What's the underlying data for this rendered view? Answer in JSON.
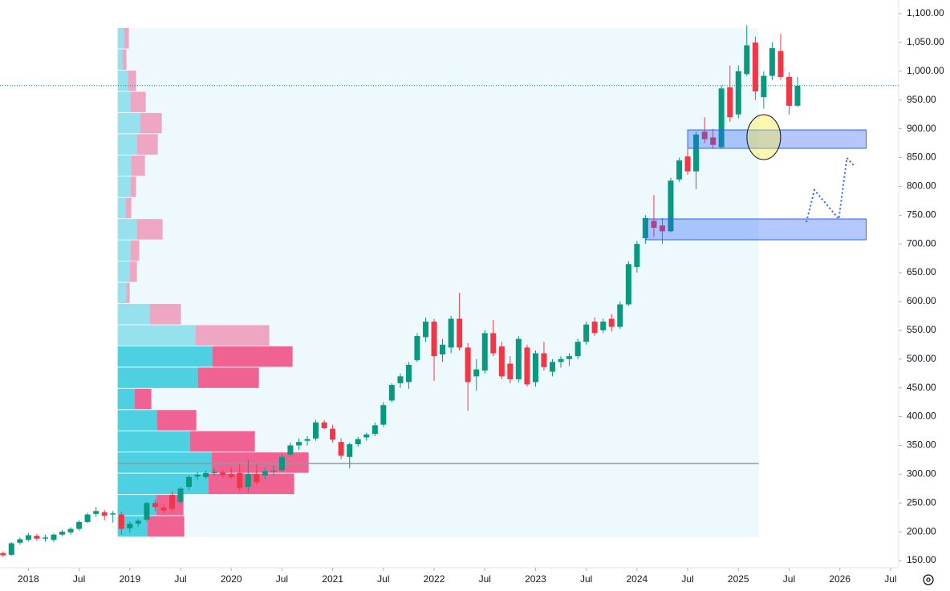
{
  "chart_data": {
    "type": "candlestick",
    "x": [
      2017.75,
      2017.833,
      2017.917,
      2018,
      2018.083,
      2018.167,
      2018.25,
      2018.333,
      2018.417,
      2018.5,
      2018.583,
      2018.667,
      2018.75,
      2018.833,
      2018.917,
      2019,
      2019.083,
      2019.167,
      2019.25,
      2019.333,
      2019.417,
      2019.5,
      2019.583,
      2019.667,
      2019.75,
      2019.833,
      2019.917,
      2020,
      2020.083,
      2020.167,
      2020.25,
      2020.333,
      2020.417,
      2020.5,
      2020.583,
      2020.667,
      2020.75,
      2020.833,
      2020.917,
      2021,
      2021.083,
      2021.167,
      2021.25,
      2021.333,
      2021.417,
      2021.5,
      2021.583,
      2021.667,
      2021.75,
      2021.833,
      2021.917,
      2022,
      2022.083,
      2022.167,
      2022.25,
      2022.333,
      2022.417,
      2022.5,
      2022.583,
      2022.667,
      2022.75,
      2022.833,
      2022.917,
      2023,
      2023.083,
      2023.167,
      2023.25,
      2023.333,
      2023.417,
      2023.5,
      2023.583,
      2023.667,
      2023.75,
      2023.833,
      2023.917,
      2024,
      2024.083,
      2024.167,
      2024.25,
      2024.333,
      2024.417,
      2024.5,
      2024.583,
      2024.667,
      2024.75,
      2024.833,
      2024.917,
      2025,
      2025.083,
      2025.167,
      2025.25,
      2025.333,
      2025.417,
      2025.5,
      2025.583
    ],
    "open": [
      163,
      160,
      181,
      186,
      193,
      188,
      186,
      195,
      199,
      205,
      217,
      231,
      234,
      230,
      230,
      206,
      214,
      221,
      250,
      242,
      264,
      252,
      278,
      296,
      295,
      302,
      303,
      300,
      302,
      278,
      300,
      298,
      305,
      307,
      334,
      350,
      358,
      362,
      390,
      379,
      356,
      330,
      352,
      364,
      370,
      386,
      428,
      458,
      460,
      498,
      538,
      565,
      508,
      520,
      570,
      520,
      470,
      480,
      545,
      522,
      492,
      465,
      520,
      460,
      510,
      478,
      495,
      500,
      505,
      530,
      565,
      550,
      570,
      556,
      595,
      660,
      710,
      740,
      732,
      722,
      812,
      852,
      826,
      895,
      885,
      868,
      972,
      925,
      995,
      1050,
      955,
      992,
      1035,
      990,
      940
    ],
    "high": [
      166,
      182,
      190,
      198,
      196,
      195,
      197,
      203,
      208,
      220,
      233,
      243,
      238,
      236,
      235,
      218,
      222,
      252,
      256,
      248,
      270,
      278,
      298,
      304,
      306,
      310,
      308,
      312,
      318,
      325,
      318,
      312,
      315,
      335,
      355,
      362,
      366,
      394,
      394,
      386,
      362,
      355,
      365,
      372,
      390,
      425,
      458,
      475,
      495,
      545,
      572,
      570,
      535,
      575,
      615,
      528,
      500,
      550,
      568,
      530,
      505,
      540,
      525,
      515,
      530,
      500,
      505,
      510,
      535,
      565,
      572,
      570,
      578,
      600,
      670,
      705,
      750,
      785,
      745,
      815,
      850,
      865,
      895,
      920,
      900,
      975,
      1010,
      1010,
      1080,
      1060,
      1000,
      1050,
      1065,
      998,
      990
    ],
    "low": [
      156,
      158,
      178,
      183,
      184,
      183,
      182,
      192,
      195,
      202,
      215,
      226,
      220,
      216,
      195,
      198,
      209,
      218,
      236,
      232,
      236,
      248,
      272,
      290,
      292,
      298,
      294,
      292,
      272,
      268,
      282,
      292,
      298,
      303,
      330,
      342,
      350,
      358,
      378,
      355,
      326,
      310,
      348,
      358,
      366,
      382,
      425,
      450,
      448,
      495,
      530,
      462,
      495,
      510,
      515,
      410,
      445,
      475,
      505,
      465,
      458,
      460,
      452,
      452,
      480,
      470,
      485,
      488,
      500,
      525,
      540,
      545,
      548,
      552,
      592,
      650,
      700,
      712,
      700,
      720,
      808,
      820,
      795,
      875,
      865,
      865,
      912,
      918,
      992,
      950,
      935,
      985,
      985,
      925,
      938
    ],
    "close": [
      159,
      180,
      187,
      194,
      188,
      190,
      195,
      200,
      205,
      217,
      230,
      236,
      228,
      232,
      205,
      214,
      219,
      250,
      243,
      237,
      240,
      275,
      295,
      299,
      302,
      304,
      298,
      295,
      276,
      300,
      286,
      305,
      306,
      330,
      350,
      356,
      361,
      390,
      380,
      360,
      332,
      352,
      361,
      369,
      385,
      420,
      455,
      470,
      490,
      540,
      565,
      505,
      525,
      570,
      520,
      460,
      482,
      545,
      510,
      470,
      465,
      535,
      456,
      510,
      486,
      495,
      500,
      505,
      530,
      560,
      545,
      565,
      556,
      595,
      665,
      700,
      745,
      728,
      722,
      810,
      845,
      826,
      890,
      882,
      872,
      970,
      920,
      1000,
      1045,
      965,
      992,
      1040,
      990,
      940,
      975
    ],
    "up_color": "#089981",
    "down_color": "#f23645",
    "xlim": [
      2017.72,
      2026.58
    ],
    "ylim": [
      137.5,
      1123.7
    ],
    "xticks": [
      2018,
      {
        "value": 2018.5,
        "label": "Jul"
      },
      2019,
      {
        "value": 2019.5,
        "label": "Jul"
      },
      2020,
      {
        "value": 2020.5,
        "label": "Jul"
      },
      2021,
      {
        "value": 2021.5,
        "label": "Jul"
      },
      2022,
      {
        "value": 2022.5,
        "label": "Jul"
      },
      2023,
      {
        "value": 2023.5,
        "label": "Jul"
      },
      2024,
      {
        "value": 2024.5,
        "label": "Jul"
      },
      2025,
      {
        "value": 2025.5,
        "label": "Jul"
      },
      2026,
      {
        "value": 2026.5,
        "label": "Jul"
      }
    ],
    "yticks": [
      {
        "value": 150,
        "label": "150.00"
      },
      {
        "value": 200,
        "label": "200.00"
      },
      {
        "value": 250,
        "label": "250.00"
      },
      {
        "value": 300,
        "label": "300.00"
      },
      {
        "value": 350,
        "label": "350.00"
      },
      {
        "value": 400,
        "label": "400.00"
      },
      {
        "value": 450,
        "label": "450.00"
      },
      {
        "value": 500,
        "label": "500.00"
      },
      {
        "value": 550,
        "label": "550.00"
      },
      {
        "value": 600,
        "label": "600.00"
      },
      {
        "value": 650,
        "label": "650.00"
      },
      {
        "value": 700,
        "label": "700.00"
      },
      {
        "value": 750,
        "label": "750.00"
      },
      {
        "value": 800,
        "label": "800.00"
      },
      {
        "value": 850,
        "label": "850.00"
      },
      {
        "value": 900,
        "label": "900.00"
      },
      {
        "value": 950,
        "label": "950.00"
      },
      {
        "value": 1000,
        "label": "1,000.00"
      },
      {
        "value": 1050,
        "label": "1,050.00"
      },
      {
        "value": 1100,
        "label": "1,100.00"
      }
    ],
    "volume_profile": {
      "start": 2018.88,
      "end": 2025.2,
      "bins": [
        190.4,
        227.3,
        264.1,
        301.0,
        337.8,
        374.7,
        411.5,
        448.4,
        485.2,
        522.1,
        558.9,
        595.8,
        632.6,
        669.5,
        706.3,
        743.2,
        780.0,
        816.9,
        853.7,
        890.6,
        927.4,
        964.3,
        1001.1,
        1038.0,
        1074.9
      ],
      "up": [
        37,
        48,
        113,
        117,
        90,
        49,
        21,
        100,
        118,
        97,
        40,
        11,
        15,
        16,
        24,
        10,
        16,
        17,
        24,
        28,
        16,
        13,
        6,
        8
      ],
      "down": [
        46,
        34,
        107,
        121,
        81,
        49,
        21,
        76,
        100,
        92,
        39,
        4,
        9,
        11,
        32,
        7,
        7,
        17,
        26,
        27,
        19,
        10,
        5,
        6
      ],
      "value_area_high": 522.1,
      "poc": 318.6,
      "up_color": "#4dd0e1",
      "down_color": "#f06292",
      "background": "#e9f8fb"
    },
    "drawings": {
      "rectangles": [
        {
          "x": [
            2024.5,
            2026.26
          ],
          "y": [
            866,
            898
          ]
        },
        {
          "x": [
            2024.09,
            2026.26
          ],
          "y": [
            707.2,
            743.4
          ]
        }
      ],
      "ellipse": {
        "cx": 2025.25,
        "cy": 885.5,
        "rx": 0.166,
        "ry": 39
      },
      "path": {
        "x": [
          2025.67,
          2025.75,
          2025.99,
          2026.07,
          2026.15
        ],
        "y": [
          738,
          793.6,
          743.4,
          849.3,
          834
        ]
      }
    }
  }
}
